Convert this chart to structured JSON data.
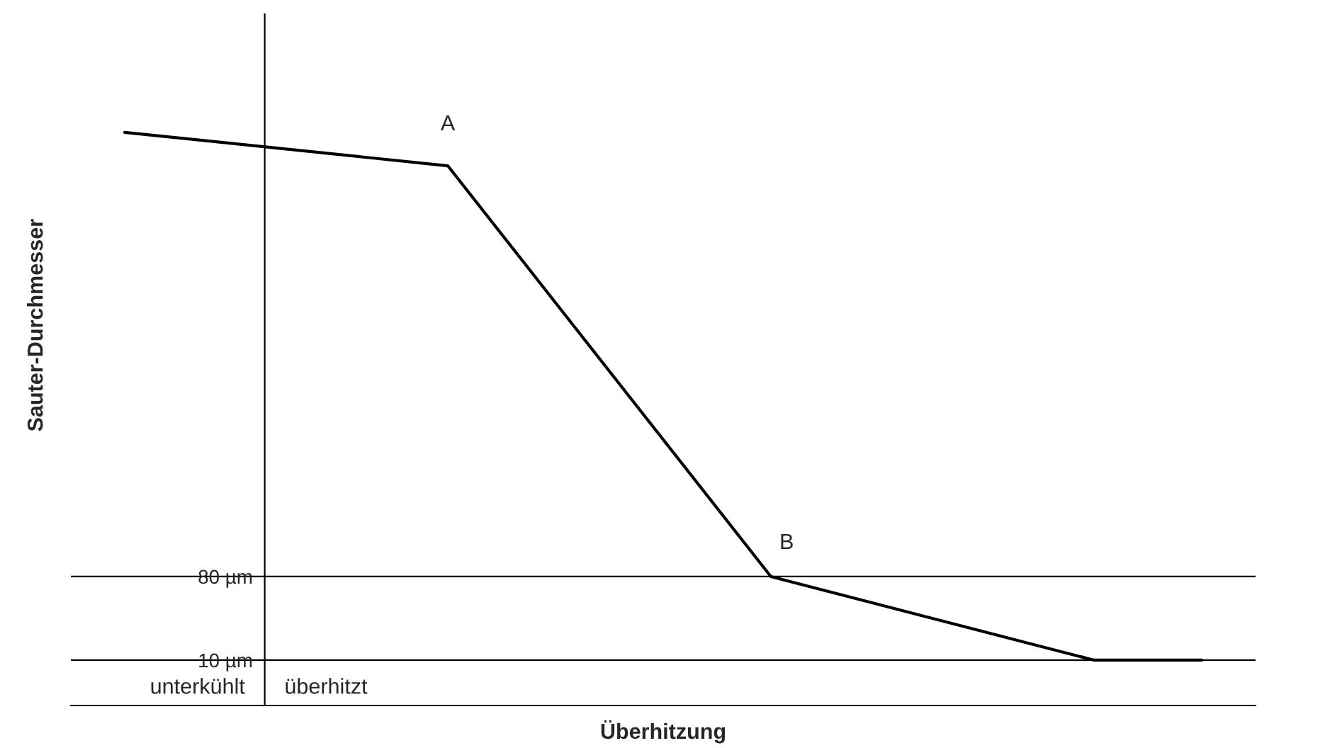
{
  "chart_data": {
    "type": "line",
    "xlabel": "Überhitzung",
    "ylabel": "Sauter-Durchmesser",
    "categories": [
      null,
      null,
      null,
      null,
      null,
      null,
      null,
      null,
      null,
      null,
      null
    ],
    "series": [
      {
        "color": "#000000",
        "values": [
          452,
          null,
          null,
          424,
          null,
          null,
          80,
          null,
          null,
          10,
          10
        ]
      }
    ],
    "ylim": [
      -28,
      551
    ],
    "yticks": [
      {
        "value": 80,
        "label": "80 µm"
      },
      {
        "value": 10,
        "label": "10 µm"
      }
    ],
    "annotations": [
      "A",
      {
        "text": "B",
        "y": 80
      },
      "unterkühlt",
      "überhitzt"
    ],
    "grid": "y",
    "marker": "none",
    "line_style": "solid"
  }
}
